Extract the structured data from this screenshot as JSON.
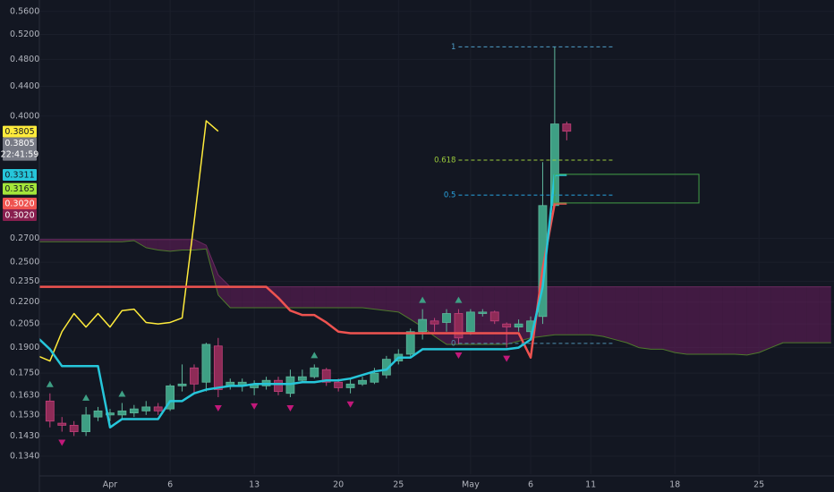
{
  "chart_data": {
    "type": "candlestick",
    "log_scale": true,
    "grid": true,
    "xlim": [
      -5.88,
      60.24
    ],
    "ylim": [
      0.1265,
      0.581
    ],
    "xticks": [
      {
        "value": 0,
        "label": "Apr"
      },
      {
        "value": 5,
        "label": "6"
      },
      {
        "value": 12,
        "label": "13"
      },
      {
        "value": 19,
        "label": "20"
      },
      {
        "value": 24,
        "label": "25"
      },
      {
        "value": 30,
        "label": "May"
      },
      {
        "value": 35,
        "label": "6"
      },
      {
        "value": 40,
        "label": "11"
      },
      {
        "value": 47,
        "label": "18"
      },
      {
        "value": 54,
        "label": "25"
      }
    ],
    "yticks": [
      {
        "value": 0.56,
        "label": "0.5600"
      },
      {
        "value": 0.52,
        "label": "0.5200"
      },
      {
        "value": 0.48,
        "label": "0.4800"
      },
      {
        "value": 0.44,
        "label": "0.4400"
      },
      {
        "value": 0.4,
        "label": "0.4000"
      },
      {
        "value": 0.27,
        "label": "0.2700"
      },
      {
        "value": 0.25,
        "label": "0.2500"
      },
      {
        "value": 0.235,
        "label": "0.2350"
      },
      {
        "value": 0.22,
        "label": "0.2200"
      },
      {
        "value": 0.205,
        "label": "0.2050"
      },
      {
        "value": 0.19,
        "label": "0.1900"
      },
      {
        "value": 0.175,
        "label": "0.1750"
      },
      {
        "value": 0.163,
        "label": "0.1630"
      },
      {
        "value": 0.153,
        "label": "0.1530"
      },
      {
        "value": 0.143,
        "label": "0.1430"
      },
      {
        "value": 0.134,
        "label": "0.1340"
      }
    ],
    "up_color": "#3e9f84",
    "down_color": "#8e2b57",
    "x": [
      -6,
      -5,
      -4,
      -3,
      -2,
      -1,
      0,
      1,
      2,
      3,
      4,
      5,
      6,
      7,
      8,
      9,
      10,
      11,
      12,
      13,
      14,
      15,
      16,
      17,
      18,
      19,
      20,
      21,
      22,
      23,
      24,
      25,
      26,
      27,
      28,
      29,
      30,
      31,
      32,
      33,
      34,
      35,
      36,
      37,
      38,
      39,
      40,
      41,
      42,
      43,
      44,
      45,
      46,
      47,
      48,
      49,
      50,
      51,
      52,
      53,
      54,
      55,
      56,
      57,
      58,
      59,
      60
    ],
    "open": [
      null,
      0.16,
      0.149,
      0.148,
      0.145,
      0.152,
      0.153,
      0.153,
      0.154,
      0.155,
      0.157,
      0.156,
      0.168,
      0.178,
      0.17,
      0.191,
      0.168,
      0.168,
      0.167,
      0.168,
      0.171,
      0.164,
      0.171,
      0.173,
      0.177,
      0.17,
      0.167,
      0.169,
      0.17,
      0.174,
      0.182,
      0.186,
      0.2,
      0.207,
      0.206,
      0.212,
      0.2,
      0.212,
      0.213,
      0.205,
      0.203,
      0.2,
      0.21,
      0.3,
      0.39,
      null,
      null,
      null,
      null,
      null,
      null,
      null,
      null,
      null,
      null,
      null,
      null,
      null,
      null,
      null,
      null,
      null,
      null,
      null,
      null,
      null,
      null
    ],
    "high": [
      null,
      0.164,
      0.152,
      0.15,
      0.157,
      0.157,
      0.156,
      0.159,
      0.158,
      0.16,
      0.159,
      0.169,
      0.18,
      0.18,
      0.193,
      0.196,
      0.172,
      0.172,
      0.171,
      0.173,
      0.173,
      0.177,
      0.177,
      0.18,
      0.178,
      0.172,
      0.172,
      0.173,
      0.178,
      0.185,
      0.189,
      0.202,
      0.215,
      0.209,
      0.215,
      0.215,
      0.215,
      0.215,
      0.214,
      0.206,
      0.208,
      0.21,
      0.345,
      0.4997,
      0.393,
      null,
      null,
      null,
      null,
      null,
      null,
      null,
      null,
      null,
      null,
      null,
      null,
      null,
      null,
      null,
      null,
      null,
      null,
      null,
      null,
      null,
      null
    ],
    "low": [
      null,
      0.147,
      0.145,
      0.143,
      0.143,
      0.15,
      0.15,
      0.151,
      0.152,
      0.153,
      0.153,
      0.155,
      0.165,
      0.164,
      0.165,
      0.162,
      0.166,
      0.165,
      0.163,
      0.166,
      0.163,
      0.162,
      0.17,
      0.172,
      0.168,
      0.165,
      0.164,
      0.168,
      0.169,
      0.172,
      0.18,
      0.184,
      0.195,
      0.2,
      0.2,
      0.192,
      0.198,
      0.21,
      0.205,
      0.19,
      0.2,
      0.195,
      0.205,
      0.3,
      0.37,
      null,
      null,
      null,
      null,
      null,
      null,
      null,
      null,
      null,
      null,
      null,
      null,
      null,
      null,
      null,
      null,
      null,
      null,
      null,
      null,
      null,
      null
    ],
    "close": [
      null,
      0.15,
      0.148,
      0.145,
      0.153,
      0.155,
      0.154,
      0.155,
      0.156,
      0.157,
      0.155,
      0.168,
      0.169,
      0.169,
      0.192,
      0.166,
      0.17,
      0.17,
      0.169,
      0.171,
      0.165,
      0.173,
      0.173,
      0.178,
      0.17,
      0.167,
      0.169,
      0.171,
      0.175,
      0.183,
      0.186,
      0.2,
      0.208,
      0.205,
      0.212,
      0.196,
      0.213,
      0.213,
      0.207,
      0.203,
      0.205,
      0.207,
      0.3,
      0.39,
      0.381,
      null,
      null,
      null,
      null,
      null,
      null,
      null,
      null,
      null,
      null,
      null,
      null,
      null,
      null,
      null,
      null,
      null,
      null,
      null,
      null,
      null,
      null
    ],
    "lines": [
      {
        "color": "#ffeb3b",
        "width": 1.5,
        "values": [
          0.185,
          0.182,
          0.2,
          0.212,
          0.203,
          0.212,
          0.203,
          0.214,
          0.215,
          0.206,
          0.205,
          0.206,
          0.209,
          0.285,
          0.394,
          0.381,
          null,
          null,
          null,
          null,
          null,
          null,
          null,
          null,
          null,
          null,
          null,
          null,
          null,
          null,
          null,
          null,
          null,
          null,
          null,
          null,
          null,
          null,
          null,
          null,
          null,
          null,
          null,
          null,
          null,
          null,
          null,
          null,
          null,
          null,
          null,
          null,
          null,
          null,
          null,
          null,
          null,
          null,
          null,
          null,
          null,
          null,
          null,
          null,
          null,
          null,
          null
        ]
      },
      {
        "color": "#ef5350",
        "width": 2.5,
        "values": [
          0.231,
          0.231,
          0.231,
          0.231,
          0.231,
          0.231,
          0.231,
          0.231,
          0.231,
          0.231,
          0.231,
          0.231,
          0.231,
          0.231,
          0.231,
          0.231,
          0.231,
          0.231,
          0.231,
          0.231,
          0.223,
          0.214,
          0.211,
          0.211,
          0.206,
          0.2,
          0.199,
          0.199,
          0.199,
          0.199,
          0.199,
          0.199,
          0.199,
          0.199,
          0.199,
          0.199,
          0.199,
          0.199,
          0.199,
          0.199,
          0.199,
          0.184,
          0.245,
          0.302,
          0.302,
          null,
          null,
          null,
          null,
          null,
          null,
          null,
          null,
          null,
          null,
          null,
          null,
          null,
          null,
          null,
          null,
          null,
          null,
          null,
          null,
          null,
          null
        ]
      },
      {
        "color": "#26c6da",
        "width": 2.5,
        "values": [
          0.196,
          0.189,
          0.179,
          0.179,
          0.179,
          0.179,
          0.147,
          0.151,
          0.151,
          0.151,
          0.151,
          0.16,
          0.16,
          0.164,
          0.166,
          0.167,
          0.168,
          0.168,
          0.169,
          0.169,
          0.169,
          0.169,
          0.17,
          0.17,
          0.171,
          0.171,
          0.172,
          0.174,
          0.176,
          0.177,
          0.184,
          0.184,
          0.189,
          0.189,
          0.189,
          0.189,
          0.189,
          0.189,
          0.189,
          0.189,
          0.19,
          0.195,
          0.231,
          0.3311,
          0.3311,
          null,
          null,
          null,
          null,
          null,
          null,
          null,
          null,
          null,
          null,
          null,
          null,
          null,
          null,
          null,
          null,
          null,
          null,
          null,
          null,
          null,
          null
        ]
      }
    ],
    "cloud_color": "#7b1f6a",
    "span_a": {
      "color": "#4e7a2c",
      "values": [
        0.267,
        0.267,
        0.267,
        0.267,
        0.267,
        0.267,
        0.267,
        0.267,
        0.268,
        0.262,
        0.26,
        0.259,
        0.26,
        0.26,
        0.261,
        0.225,
        0.216,
        0.216,
        0.216,
        0.216,
        0.216,
        0.216,
        0.216,
        0.216,
        0.216,
        0.216,
        0.216,
        0.216,
        0.215,
        0.214,
        0.213,
        0.208,
        0.203,
        0.197,
        0.192,
        0.192,
        0.192,
        0.192,
        0.192,
        0.192,
        0.194,
        0.196,
        0.197,
        0.198,
        0.198,
        0.198,
        0.198,
        0.197,
        0.195,
        0.193,
        0.19,
        0.189,
        0.189,
        0.187,
        0.186,
        0.186,
        0.186,
        0.186,
        0.186,
        0.1855,
        0.187,
        0.19,
        0.193,
        0.193,
        0.193,
        0.193,
        0.193
      ]
    },
    "span_b": {
      "color": "#6a2a5e",
      "values": [
        0.269,
        0.269,
        0.269,
        0.269,
        0.269,
        0.269,
        0.269,
        0.269,
        0.269,
        0.269,
        0.269,
        0.269,
        0.269,
        0.269,
        0.264,
        0.24,
        0.231,
        0.231,
        0.231,
        0.231,
        0.231,
        0.231,
        0.231,
        0.231,
        0.231,
        0.231,
        0.231,
        0.231,
        0.231,
        0.231,
        0.231,
        0.231,
        0.231,
        0.231,
        0.231,
        0.231,
        0.231,
        0.231,
        0.231,
        0.231,
        0.231,
        0.231,
        0.231,
        0.231,
        0.231,
        0.231,
        0.231,
        0.231,
        0.231,
        0.231,
        0.231,
        0.231,
        0.231,
        0.231,
        0.231,
        0.231,
        0.231,
        0.231,
        0.231,
        0.231,
        0.231,
        0.231,
        0.231,
        0.231,
        0.231,
        0.231,
        0.231
      ]
    },
    "signals": {
      "buy": {
        "color": "#3e9f84",
        "x": [
          -5,
          -2,
          1,
          17,
          26,
          29
        ]
      },
      "sell": {
        "color": "#c2187a",
        "x": [
          -4,
          9,
          12,
          15,
          20,
          29,
          33
        ]
      }
    },
    "fib": {
      "x_start": 29,
      "x_end": 42,
      "low": 0.1926,
      "high": 0.4997,
      "levels": [
        {
          "level": 1,
          "color": "#4f9ec9"
        },
        {
          "level": 0.618,
          "color": "#9ccc3c"
        },
        {
          "level": 0.5,
          "color": "#29a3e0"
        },
        {
          "level": 0,
          "color": "#4f8fb0"
        }
      ]
    },
    "zone": {
      "color": "#43a047",
      "x": [
        37,
        49
      ],
      "price": [
        0.3025,
        0.3317
      ]
    },
    "price_tags": [
      {
        "value": 0.3805,
        "color": "#ffeb3b"
      },
      {
        "value": 0.3805,
        "color": "#787b86",
        "countdown": "22:41:59"
      },
      {
        "value": 0.3311,
        "color": "#26c6da"
      },
      {
        "value": 0.3165,
        "color": "#a4e63a"
      },
      {
        "value": 0.302,
        "label": "0.3020",
        "color": "#ef5350"
      },
      {
        "value": 0.302,
        "label": "0.3020",
        "color": "#881f4f"
      }
    ]
  }
}
